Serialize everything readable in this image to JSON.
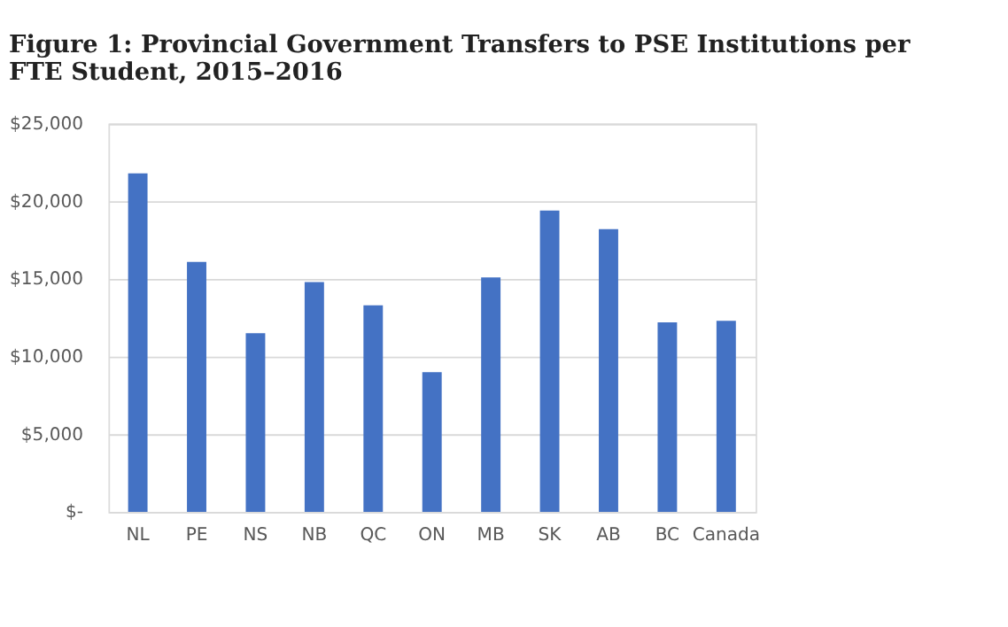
{
  "chart_data": {
    "type": "bar",
    "title": "Figure 1: Provincial Government Transfers to PSE Institutions per FTE Student, 2015–2016",
    "categories": [
      "NL",
      "PE",
      "NS",
      "NB",
      "QC",
      "ON",
      "MB",
      "SK",
      "AB",
      "BC",
      "Canada"
    ],
    "values": [
      21800,
      16100,
      11500,
      14800,
      13300,
      9000,
      15100,
      19400,
      18200,
      12200,
      12300
    ],
    "color": "#4472c4",
    "ylim": [
      0,
      25000
    ],
    "yticks": [
      {
        "value": 0,
        "label": "$-"
      },
      {
        "value": 5000,
        "label": "$5,000"
      },
      {
        "value": 10000,
        "label": "$10,000"
      },
      {
        "value": 15000,
        "label": "$15,000"
      },
      {
        "value": 20000,
        "label": "$20,000"
      },
      {
        "value": 25000,
        "label": "$25,000"
      }
    ],
    "grid": "y"
  }
}
